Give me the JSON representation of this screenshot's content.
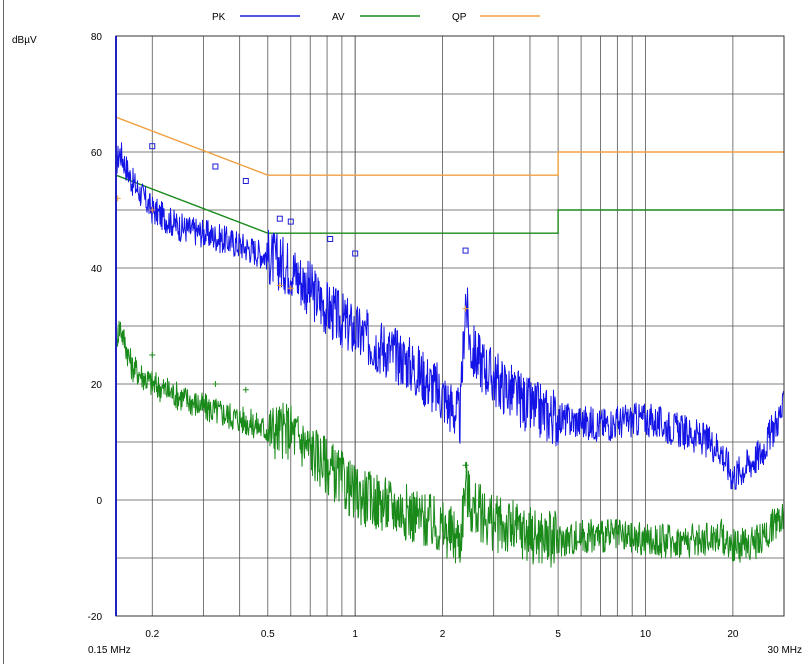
{
  "chart_data": {
    "type": "line",
    "title": "",
    "ylabel": "dBµV",
    "xlabel": "",
    "x_scale": "log",
    "xlim": [
      0.15,
      30
    ],
    "ylim": [
      -20,
      80
    ],
    "grid": true,
    "legend_position": "top",
    "x_ticks": [
      {
        "value": 0.15,
        "label": "0.15 MHz"
      },
      {
        "value": 0.2,
        "label": "0.2"
      },
      {
        "value": 0.5,
        "label": "0.5"
      },
      {
        "value": 1,
        "label": "1"
      },
      {
        "value": 2,
        "label": "2"
      },
      {
        "value": 5,
        "label": "5"
      },
      {
        "value": 10,
        "label": "10"
      },
      {
        "value": 20,
        "label": "20"
      },
      {
        "value": 30,
        "label": "30 MHz"
      }
    ],
    "y_ticks": [
      -20,
      0,
      20,
      40,
      60,
      80
    ],
    "legend": [
      {
        "name": "PK",
        "color": "#1f1fd6"
      },
      {
        "name": "AV",
        "color": "#1a8a1a"
      },
      {
        "name": "QP",
        "color": "#f0a040"
      }
    ],
    "series": [
      {
        "name": "PK",
        "color": "#1414e6",
        "x": [
          0.15,
          0.155,
          0.17,
          0.2,
          0.25,
          0.3,
          0.4,
          0.5,
          0.6,
          0.8,
          1,
          1.5,
          2,
          2.3,
          2.4,
          2.5,
          3,
          4,
          5,
          7,
          10,
          15,
          18,
          20,
          25,
          30
        ],
        "y": [
          58,
          60,
          55,
          50,
          47,
          46,
          44,
          42,
          40,
          33,
          29,
          24,
          18,
          14,
          35,
          26,
          21,
          16,
          14,
          13,
          14,
          11,
          9,
          4,
          8,
          16
        ]
      },
      {
        "name": "AV",
        "color": "#1a8a1a",
        "x": [
          0.15,
          0.155,
          0.17,
          0.2,
          0.3,
          0.4,
          0.5,
          0.6,
          0.8,
          1,
          1.5,
          2,
          2.3,
          2.4,
          2.5,
          3,
          4,
          5,
          7,
          10,
          15,
          18,
          20,
          25,
          30
        ],
        "y": [
          28,
          30,
          23,
          20,
          16,
          14,
          12,
          12,
          6,
          1,
          -2,
          -5,
          -7,
          3,
          -1,
          -4,
          -6,
          -7,
          -6,
          -7,
          -7,
          -6,
          -8,
          -7,
          -2
        ]
      }
    ],
    "limit_lines": [
      {
        "name": "QP",
        "color": "#f0a040",
        "points": [
          [
            0.15,
            66
          ],
          [
            0.5,
            56
          ],
          [
            5,
            56
          ],
          [
            5,
            60
          ],
          [
            30,
            60
          ]
        ]
      },
      {
        "name": "AV",
        "color": "#1a8a1a",
        "points": [
          [
            0.15,
            56
          ],
          [
            0.5,
            46
          ],
          [
            5,
            46
          ],
          [
            5,
            50
          ],
          [
            30,
            50
          ]
        ]
      }
    ],
    "markers": [
      {
        "series": "PK",
        "color": "#1f1fd6",
        "shape": "square",
        "points": [
          [
            0.2,
            61
          ],
          [
            0.33,
            57.5
          ],
          [
            0.42,
            55
          ],
          [
            0.55,
            48.5
          ],
          [
            0.6,
            48
          ],
          [
            0.82,
            45
          ],
          [
            1.0,
            42.5
          ],
          [
            2.4,
            43
          ]
        ]
      },
      {
        "series": "QP",
        "color": "#f0a040",
        "shape": "plus",
        "points": [
          [
            0.152,
            52
          ],
          [
            0.2,
            50
          ],
          [
            0.55,
            37
          ],
          [
            0.6,
            36.5
          ],
          [
            2.4,
            33
          ]
        ]
      },
      {
        "series": "AV",
        "color": "#1a8a1a",
        "shape": "plus",
        "points": [
          [
            0.2,
            25
          ],
          [
            0.33,
            20
          ],
          [
            0.42,
            19
          ],
          [
            2.4,
            6
          ]
        ]
      }
    ]
  }
}
